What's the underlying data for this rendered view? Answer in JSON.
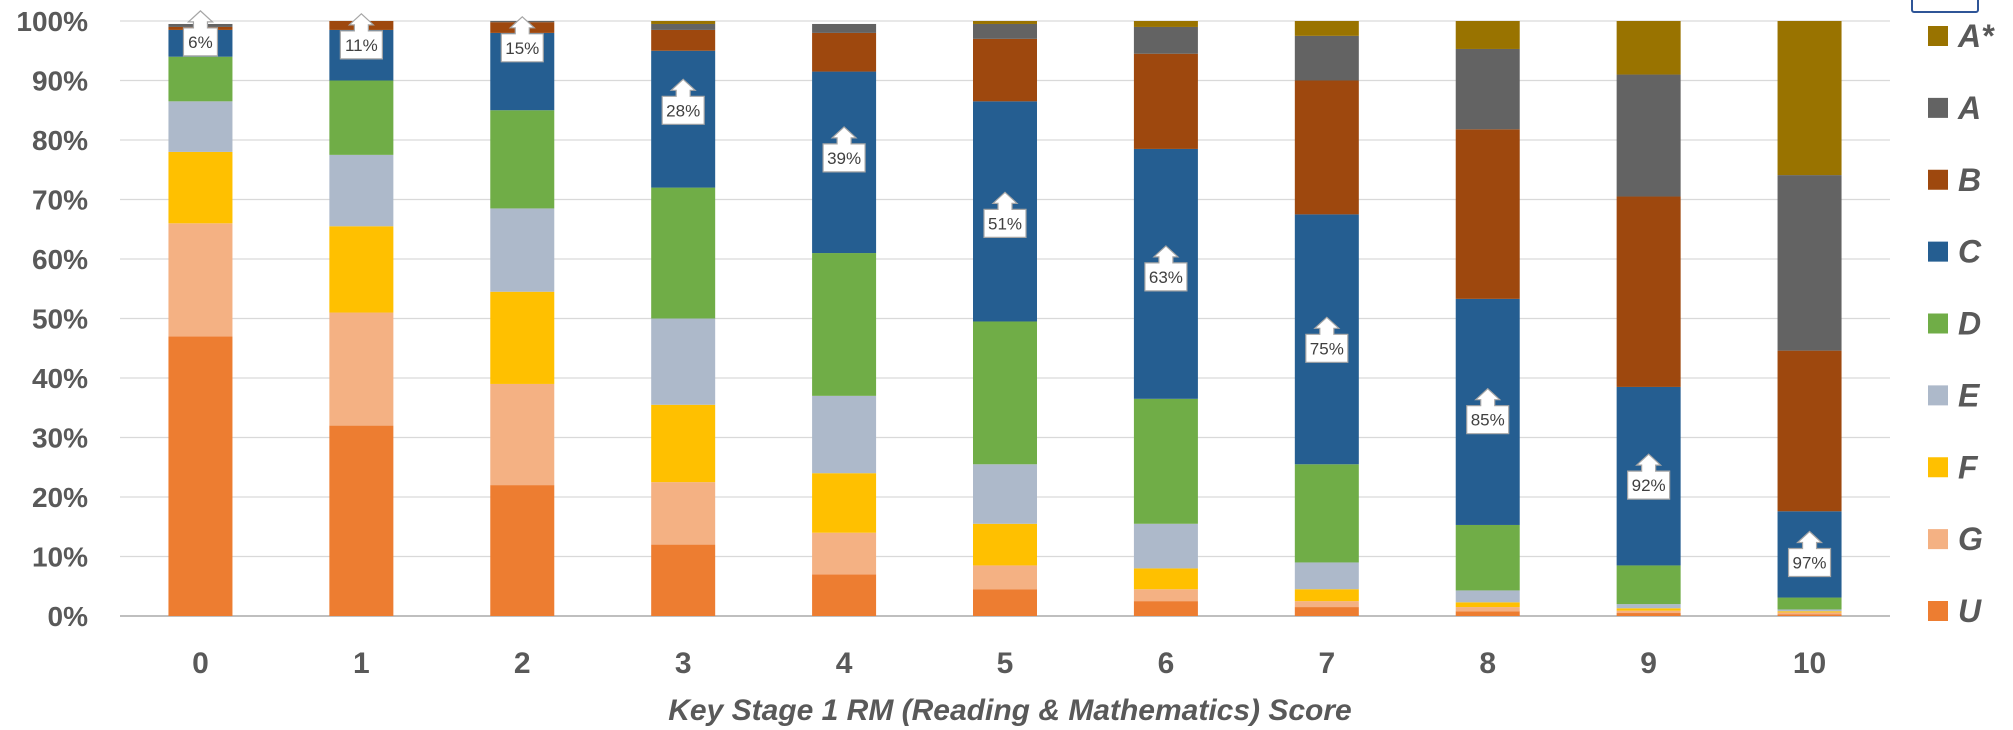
{
  "chart_data": {
    "type": "bar",
    "stacked": true,
    "xlabel": "Key Stage 1 RM (Reading & Mathematics) Score",
    "ylabel": "",
    "ylim": [
      0,
      100
    ],
    "yticks": [
      "0%",
      "10%",
      "20%",
      "30%",
      "40%",
      "50%",
      "60%",
      "70%",
      "80%",
      "90%",
      "100%"
    ],
    "categories": [
      "0",
      "1",
      "2",
      "3",
      "4",
      "5",
      "6",
      "7",
      "8",
      "9",
      "10"
    ],
    "grid": true,
    "legend_position": "right",
    "series": [
      {
        "name": "U",
        "color": "#ED7D31",
        "values": [
          47,
          32,
          22,
          12,
          7,
          4.5,
          2.5,
          1.5,
          0.8,
          0.5,
          0.3
        ]
      },
      {
        "name": "G",
        "color": "#F4B183",
        "values": [
          19,
          19,
          17,
          10.5,
          7,
          4,
          2,
          1,
          0.7,
          0.4,
          0.3
        ]
      },
      {
        "name": "F",
        "color": "#FFC000",
        "values": [
          12,
          14.5,
          15.5,
          13,
          10,
          7,
          3.5,
          2,
          0.8,
          0.4,
          0.2
        ]
      },
      {
        "name": "E",
        "color": "#ADB9CA",
        "values": [
          8.5,
          12,
          14,
          14.5,
          13,
          10,
          7.5,
          4.5,
          2,
          0.7,
          0.3
        ]
      },
      {
        "name": "D",
        "color": "#70AD47",
        "values": [
          7.5,
          12.5,
          16.5,
          22,
          24,
          24,
          21,
          16.5,
          11,
          6.5,
          2
        ]
      },
      {
        "name": "C",
        "color": "#255E91",
        "values": [
          4.5,
          8.5,
          13,
          23,
          30.5,
          37,
          42,
          42,
          38,
          30,
          14.5
        ]
      },
      {
        "name": "B",
        "color": "#9E480E",
        "values": [
          0.5,
          1.5,
          1.8,
          3.5,
          6.5,
          10.5,
          16,
          22.5,
          28.5,
          32,
          27
        ]
      },
      {
        "name": "A",
        "color": "#636363",
        "values": [
          0.5,
          0,
          0.2,
          1,
          1.5,
          2.5,
          4.5,
          7.5,
          13.5,
          20.5,
          29.5
        ]
      },
      {
        "name": "A*",
        "color": "#997300",
        "values": [
          0,
          0,
          0,
          0.5,
          0,
          0.5,
          1,
          2.5,
          4.7,
          9,
          26
        ]
      }
    ],
    "callouts": [
      "6%",
      "11%",
      "15%",
      "28%",
      "39%",
      "51%",
      "63%",
      "75%",
      "85%",
      "92%",
      "97%"
    ],
    "callout_positions": [
      97.5,
      97,
      96.5,
      86,
      78,
      67,
      58,
      46,
      34,
      23,
      10
    ]
  }
}
